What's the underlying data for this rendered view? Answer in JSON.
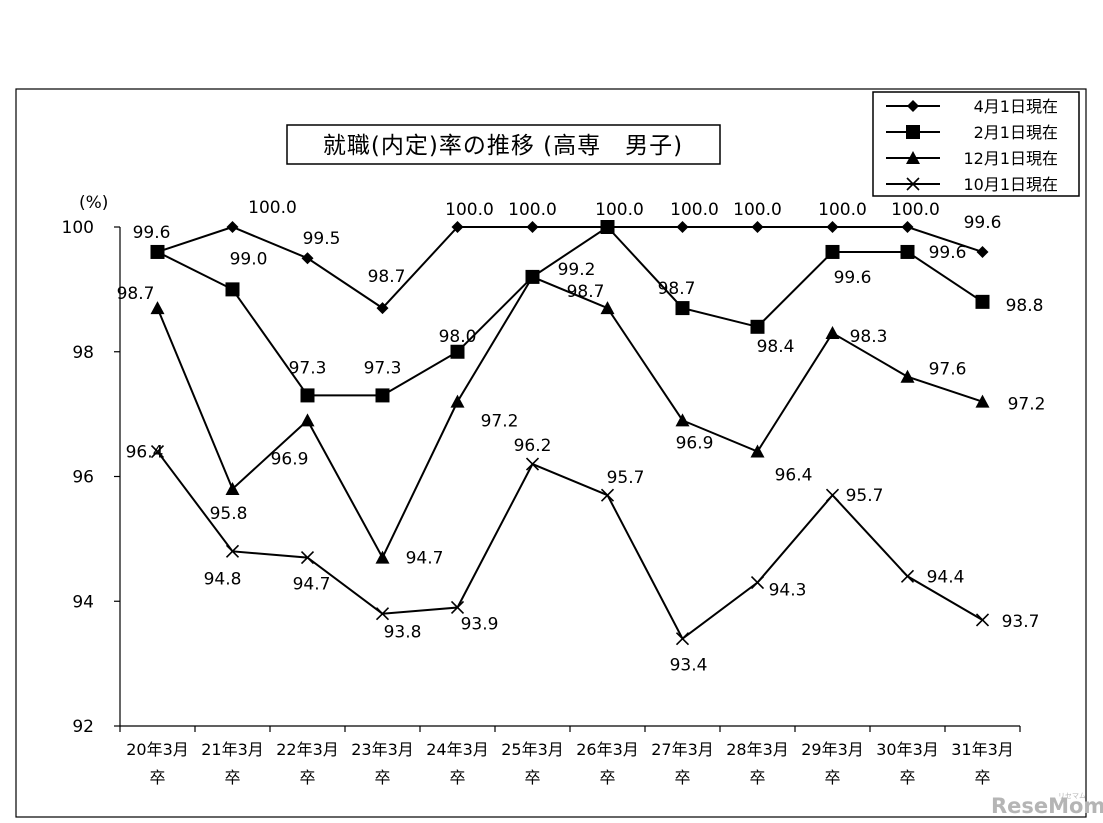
{
  "chart_data": {
    "type": "line",
    "title": "就職(内定)率の推移 (高専　男子)",
    "unit_label": "(%)",
    "ylim": [
      92,
      100
    ],
    "yticks": [
      92,
      94,
      96,
      98,
      100
    ],
    "categories": [
      [
        "20年3月",
        "卒"
      ],
      [
        "21年3月",
        "卒"
      ],
      [
        "22年3月",
        "卒"
      ],
      [
        "23年3月",
        "卒"
      ],
      [
        "24年3月",
        "卒"
      ],
      [
        "25年3月",
        "卒"
      ],
      [
        "26年3月",
        "卒"
      ],
      [
        "27年3月",
        "卒"
      ],
      [
        "28年3月",
        "卒"
      ],
      [
        "29年3月",
        "卒"
      ],
      [
        "30年3月",
        "卒"
      ],
      [
        "31年3月",
        "卒"
      ]
    ],
    "series": [
      {
        "name": "4月1日現在",
        "marker": "diamond",
        "values": [
          99.6,
          100.0,
          99.5,
          98.7,
          100.0,
          100.0,
          100.0,
          100.0,
          100.0,
          100.0,
          100.0,
          99.6
        ],
        "labels": [
          "",
          "100.0",
          "99.5",
          "98.7",
          "100.0",
          "100.0",
          "100.0",
          "100.0",
          "100.0",
          "100.0",
          "100.0",
          "99.6"
        ]
      },
      {
        "name": "2月1日現在",
        "marker": "square",
        "values": [
          99.6,
          99.0,
          97.3,
          97.3,
          98.0,
          99.2,
          100.0,
          98.7,
          98.4,
          99.6,
          99.6,
          98.8
        ],
        "labels": [
          "99.6",
          "99.0",
          "97.3",
          "97.3",
          "98.0",
          "99.2",
          "",
          "98.7",
          "98.4",
          "99.6",
          "99.6",
          "98.8"
        ]
      },
      {
        "name": "12月1日現在",
        "marker": "triangle",
        "values": [
          98.7,
          95.8,
          96.9,
          94.7,
          97.2,
          99.2,
          98.7,
          96.9,
          96.4,
          98.3,
          97.6,
          97.2
        ],
        "labels": [
          "98.7",
          "95.8",
          "96.9",
          "94.7",
          "97.2",
          "",
          "98.7",
          "96.9",
          "96.4",
          "98.3",
          "97.6",
          "97.2"
        ]
      },
      {
        "name": "10月1日現在",
        "marker": "x",
        "values": [
          96.4,
          94.8,
          94.7,
          93.8,
          93.9,
          96.2,
          95.7,
          93.4,
          94.3,
          95.7,
          94.4,
          93.7
        ],
        "labels": [
          "96.4",
          "94.8",
          "94.7",
          "93.8",
          "93.9",
          "96.2",
          "95.7",
          "93.4",
          "94.3",
          "95.7",
          "94.4",
          "93.7"
        ]
      }
    ],
    "legend_position": "top-right"
  },
  "watermark": {
    "brand": "ReseMom",
    "small": "リセマム"
  }
}
